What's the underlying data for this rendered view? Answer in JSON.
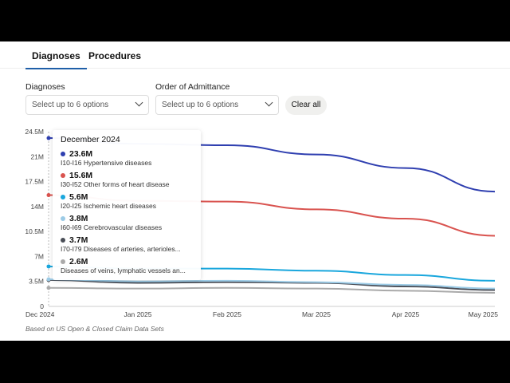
{
  "tabs": [
    {
      "label": "Diagnoses",
      "active": true
    },
    {
      "label": "Procedures",
      "active": false
    }
  ],
  "filters": {
    "diagnoses": {
      "label": "Diagnoses",
      "placeholder": "Select up to 6 options"
    },
    "order": {
      "label": "Order of Admittance",
      "placeholder": "Select up to 6 options"
    },
    "clear_label": "Clear all"
  },
  "chart_data": {
    "type": "line",
    "x": [
      "Dec 2024",
      "Jan 2025",
      "Feb 2025",
      "Mar 2025",
      "Apr 2025",
      "May 2025"
    ],
    "yticks": [
      "0",
      "3.5M",
      "7M",
      "10.5M",
      "14M",
      "17.5M",
      "21M",
      "24.5M"
    ],
    "ylim": [
      0,
      24.5
    ],
    "yunit": "M",
    "grid": false,
    "series": [
      {
        "name": "I10-I16 Hypertensive diseases",
        "color": "#2f3fb0",
        "values": [
          23.6,
          22.8,
          22.6,
          21.3,
          19.4,
          16.1
        ]
      },
      {
        "name": "I30-I52 Other forms of heart disease",
        "color": "#d9534f",
        "values": [
          15.6,
          14.8,
          14.7,
          13.6,
          12.3,
          9.9
        ]
      },
      {
        "name": "I20-I25 Ischemic heart diseases",
        "color": "#1aa7dd",
        "values": [
          5.6,
          5.3,
          5.3,
          5.0,
          4.4,
          3.6
        ]
      },
      {
        "name": "I60-I69 Cerebrovascular diseases",
        "color": "#9ccbe6",
        "values": [
          3.8,
          3.5,
          3.6,
          3.4,
          3.0,
          2.5
        ]
      },
      {
        "name": "I70-I79 Diseases of arteries, arterioles...",
        "color": "#4a4e57",
        "values": [
          3.7,
          3.3,
          3.4,
          3.3,
          2.8,
          2.3
        ]
      },
      {
        "name": "Diseases of veins, lymphatic vessels an...",
        "color": "#aaaaaa",
        "values": [
          2.6,
          2.5,
          2.6,
          2.5,
          2.2,
          1.9
        ]
      }
    ]
  },
  "tooltip": {
    "title": "December 2024",
    "values": [
      "23.6M",
      "15.6M",
      "5.6M",
      "3.8M",
      "3.7M",
      "2.6M"
    ]
  },
  "footnote": "Based on US Open & Closed Claim Data Sets"
}
